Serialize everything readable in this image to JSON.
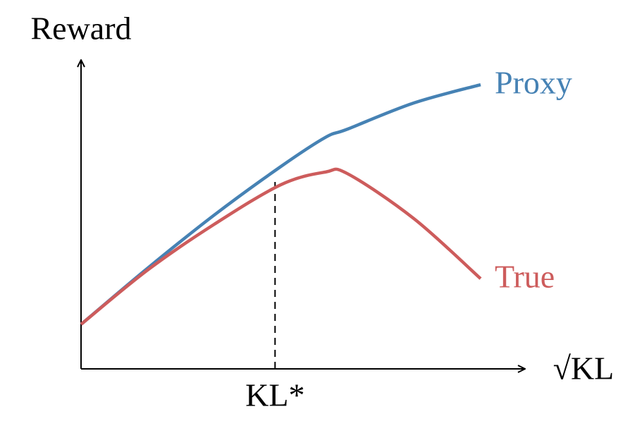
{
  "chart_data": {
    "type": "line",
    "x_label": "√KL",
    "y_label": "Reward",
    "x": [
      0,
      1.5,
      3,
      4.5,
      5.5,
      6,
      7.5,
      9
    ],
    "series": [
      {
        "name": "Proxy",
        "color": "#4682b4",
        "values": [
          1.44,
          3.26,
          4.98,
          6.55,
          7.49,
          7.76,
          8.61,
          9.2
        ]
      },
      {
        "name": "True",
        "color": "#cd5c5c",
        "values": [
          1.44,
          3.2,
          4.68,
          5.96,
          6.37,
          6.32,
          4.86,
          2.92
        ]
      }
    ],
    "annotation": {
      "text": "KL*",
      "x": 4.37,
      "y": 6.19
    },
    "xlim": [
      0,
      10
    ],
    "ylim": [
      0,
      10
    ]
  }
}
